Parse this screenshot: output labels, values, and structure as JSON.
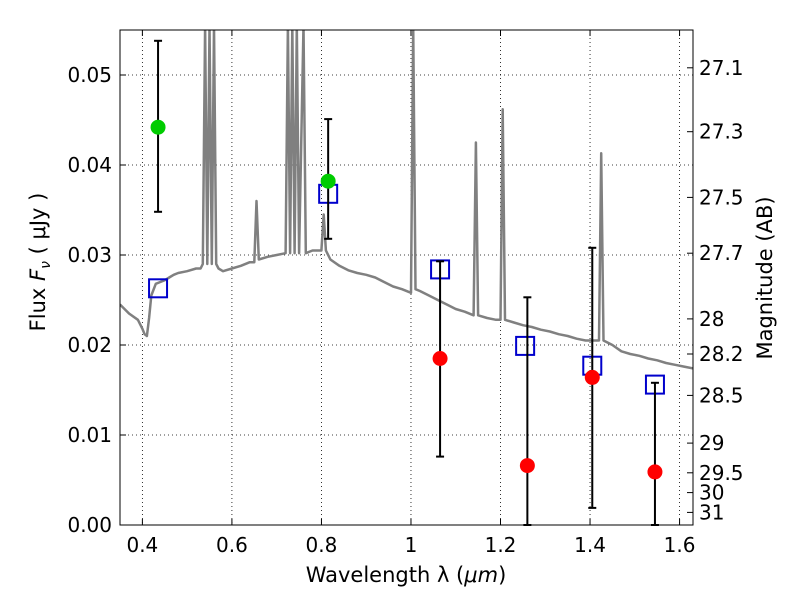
{
  "chart_data": {
    "type": "scatter",
    "title": "",
    "xlabel": "Wavelength  λ (μm)",
    "ylabel": "Flux  Fν (μJy)",
    "ylabel_parts": {
      "pre": "Flux  ",
      "sym": "F",
      "sub": "ν",
      "post": "  ( μJy )"
    },
    "xlabel_parts": {
      "pre": "Wavelength  λ (",
      "unit": "μm",
      "post": ")"
    },
    "y2label": "Magnitude (AB)",
    "xlim": [
      0.35,
      1.63
    ],
    "ylim": [
      0.0,
      0.055
    ],
    "grid": true,
    "grid_style": "dotted",
    "x_ticks": [
      0.4,
      0.6,
      0.8,
      1.0,
      1.2,
      1.4,
      1.6
    ],
    "x_tick_labels": [
      "0.4",
      "0.6",
      "0.8",
      "1",
      "1.2",
      "1.4",
      "1.6"
    ],
    "y_ticks": [
      0.0,
      0.01,
      0.02,
      0.03,
      0.04,
      0.05
    ],
    "y_tick_labels": [
      "0.00",
      "0.01",
      "0.02",
      "0.03",
      "0.04",
      "0.05"
    ],
    "y2_ticks": [
      {
        "label": "27.1",
        "flux": 0.0508
      },
      {
        "label": "27.3",
        "flux": 0.0437
      },
      {
        "label": "27.5",
        "flux": 0.0364
      },
      {
        "label": "27.7",
        "flux": 0.0302
      },
      {
        "label": "28",
        "flux": 0.0229
      },
      {
        "label": "28.2",
        "flux": 0.019
      },
      {
        "label": "28.5",
        "flux": 0.0144
      },
      {
        "label": "29",
        "flux": 0.0091
      },
      {
        "label": "29.5",
        "flux": 0.0058
      },
      {
        "label": "30",
        "flux": 0.0036
      },
      {
        "label": "31",
        "flux": 0.0014
      }
    ],
    "series": [
      {
        "kind": "line",
        "color": "#808080",
        "points": [
          [
            0.35,
            0.0245
          ],
          [
            0.37,
            0.0235
          ],
          [
            0.39,
            0.0228
          ],
          [
            0.4,
            0.0218
          ],
          [
            0.405,
            0.0212
          ],
          [
            0.41,
            0.021
          ],
          [
            0.415,
            0.023
          ],
          [
            0.42,
            0.0255
          ],
          [
            0.43,
            0.0268
          ],
          [
            0.44,
            0.027
          ],
          [
            0.45,
            0.0272
          ],
          [
            0.46,
            0.0275
          ],
          [
            0.47,
            0.0278
          ],
          [
            0.48,
            0.028
          ],
          [
            0.5,
            0.0282
          ],
          [
            0.52,
            0.0285
          ],
          [
            0.53,
            0.0285
          ],
          [
            0.535,
            0.029
          ],
          [
            0.54,
            0.0555
          ],
          [
            0.545,
            0.029
          ],
          [
            0.55,
            0.0555
          ],
          [
            0.555,
            0.029
          ],
          [
            0.56,
            0.0555
          ],
          [
            0.565,
            0.029
          ],
          [
            0.57,
            0.0285
          ],
          [
            0.58,
            0.0282
          ],
          [
            0.6,
            0.0285
          ],
          [
            0.62,
            0.0288
          ],
          [
            0.64,
            0.0292
          ],
          [
            0.65,
            0.0292
          ],
          [
            0.655,
            0.036
          ],
          [
            0.66,
            0.0295
          ],
          [
            0.68,
            0.0298
          ],
          [
            0.7,
            0.03
          ],
          [
            0.72,
            0.0302
          ],
          [
            0.725,
            0.0555
          ],
          [
            0.73,
            0.0302
          ],
          [
            0.735,
            0.0555
          ],
          [
            0.74,
            0.0302
          ],
          [
            0.745,
            0.0555
          ],
          [
            0.75,
            0.0302
          ],
          [
            0.76,
            0.0555
          ],
          [
            0.765,
            0.0302
          ],
          [
            0.78,
            0.0305
          ],
          [
            0.8,
            0.0305
          ],
          [
            0.805,
            0.0345
          ],
          [
            0.81,
            0.0305
          ],
          [
            0.82,
            0.0295
          ],
          [
            0.84,
            0.0288
          ],
          [
            0.86,
            0.0283
          ],
          [
            0.88,
            0.028
          ],
          [
            0.9,
            0.0278
          ],
          [
            0.92,
            0.0275
          ],
          [
            0.94,
            0.027
          ],
          [
            0.96,
            0.0265
          ],
          [
            0.98,
            0.0262
          ],
          [
            1.0,
            0.0258
          ],
          [
            1.005,
            0.0555
          ],
          [
            1.01,
            0.0262
          ],
          [
            1.02,
            0.026
          ],
          [
            1.04,
            0.0255
          ],
          [
            1.06,
            0.025
          ],
          [
            1.08,
            0.0245
          ],
          [
            1.1,
            0.024
          ],
          [
            1.12,
            0.0237
          ],
          [
            1.14,
            0.0233
          ],
          [
            1.145,
            0.0425
          ],
          [
            1.15,
            0.0233
          ],
          [
            1.17,
            0.023
          ],
          [
            1.19,
            0.0228
          ],
          [
            1.2,
            0.0228
          ],
          [
            1.205,
            0.0462
          ],
          [
            1.21,
            0.0228
          ],
          [
            1.23,
            0.0225
          ],
          [
            1.25,
            0.0222
          ],
          [
            1.27,
            0.022
          ],
          [
            1.29,
            0.0217
          ],
          [
            1.31,
            0.0215
          ],
          [
            1.33,
            0.0212
          ],
          [
            1.35,
            0.021
          ],
          [
            1.37,
            0.0207
          ],
          [
            1.39,
            0.0205
          ],
          [
            1.41,
            0.0205
          ],
          [
            1.415,
            0.0205
          ],
          [
            1.42,
            0.0205
          ],
          [
            1.425,
            0.0413
          ],
          [
            1.43,
            0.0205
          ],
          [
            1.45,
            0.02
          ],
          [
            1.47,
            0.0193
          ],
          [
            1.49,
            0.019
          ],
          [
            1.51,
            0.0188
          ],
          [
            1.53,
            0.0185
          ],
          [
            1.55,
            0.0183
          ],
          [
            1.57,
            0.018
          ],
          [
            1.59,
            0.0178
          ],
          [
            1.61,
            0.0176
          ],
          [
            1.63,
            0.0174
          ]
        ]
      },
      {
        "kind": "markers",
        "marker": "square",
        "color": "#0000cc",
        "points": [
          [
            0.435,
            0.0263
          ],
          [
            0.815,
            0.0368
          ],
          [
            1.065,
            0.0284
          ],
          [
            1.255,
            0.0199
          ],
          [
            1.405,
            0.0177
          ],
          [
            1.545,
            0.0156
          ]
        ]
      },
      {
        "kind": "markers",
        "marker": "circle",
        "color": "#00cc00",
        "points": [
          {
            "x": 0.435,
            "y": 0.0442,
            "yerr_low": 0.0348,
            "yerr_high": 0.0538
          },
          {
            "x": 0.815,
            "y": 0.0382,
            "yerr_low": 0.0318,
            "yerr_high": 0.0451
          }
        ]
      },
      {
        "kind": "markers",
        "marker": "circle",
        "color": "#ff0000",
        "points": [
          {
            "x": 1.065,
            "y": 0.0185,
            "yerr_low": 0.0076,
            "yerr_high": 0.0293
          },
          {
            "x": 1.26,
            "y": 0.0066,
            "yerr_low": 0.0,
            "yerr_high": 0.0253
          },
          {
            "x": 1.405,
            "y": 0.0164,
            "yerr_low": 0.0019,
            "yerr_high": 0.0308
          },
          {
            "x": 1.545,
            "y": 0.0059,
            "yerr_low": 0.0,
            "yerr_high": 0.0158
          }
        ]
      }
    ]
  }
}
